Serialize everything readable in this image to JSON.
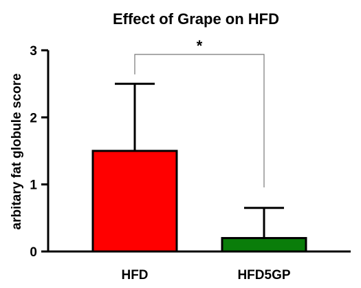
{
  "chart_data": {
    "type": "bar",
    "title": "Effect of Grape on HFD",
    "xlabel": "",
    "ylabel": "arbitary fat globule score",
    "ylim": [
      0,
      3
    ],
    "yticks": [
      "0",
      "1",
      "2",
      "3"
    ],
    "categories": [
      "HFD",
      "HFD5GP"
    ],
    "values": [
      1.5,
      0.2
    ],
    "error_upper": [
      2.5,
      0.65
    ],
    "bar_colors": [
      "#ff0000",
      "#0a7d0a"
    ],
    "significance": {
      "label": "*",
      "between": [
        "HFD",
        "HFD5GP"
      ]
    },
    "grid": false,
    "legend": "none"
  }
}
